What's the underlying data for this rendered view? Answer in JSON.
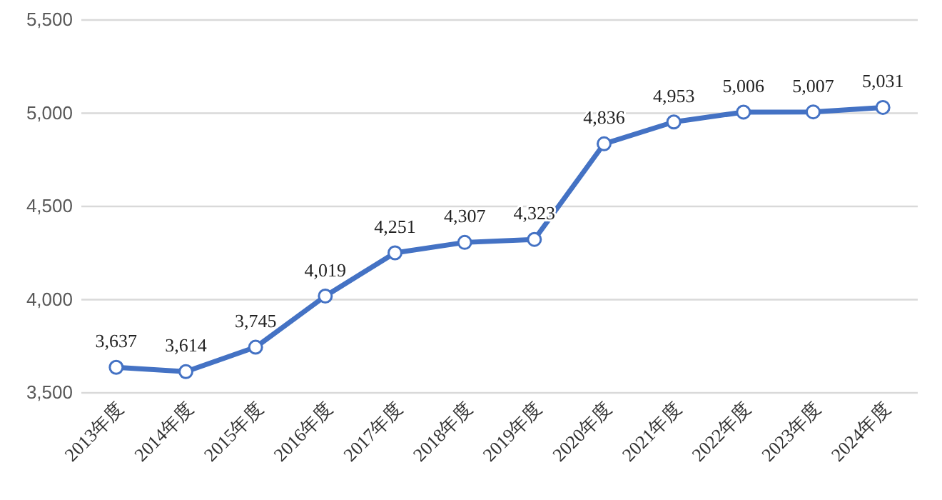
{
  "chart_data": {
    "type": "line",
    "categories": [
      "2013年度",
      "2014年度",
      "2015年度",
      "2016年度",
      "2017年度",
      "2018年度",
      "2019年度",
      "2020年度",
      "2021年度",
      "2022年度",
      "2023年度",
      "2024年度"
    ],
    "values": [
      3637,
      3614,
      3745,
      4019,
      4251,
      4307,
      4323,
      4836,
      4953,
      5006,
      5007,
      5031
    ],
    "color": "#4472c4",
    "ylim": [
      3500,
      5500
    ],
    "yticks": [
      {
        "value": 3500,
        "label": "3,500"
      },
      {
        "value": 4000,
        "label": "4,000"
      },
      {
        "value": 4500,
        "label": "4,500"
      },
      {
        "value": 5000,
        "label": "5,000"
      },
      {
        "value": 5500,
        "label": "5,500"
      }
    ],
    "grid": "y",
    "value_labels": [
      "3,637",
      "3,614",
      "3,745",
      "4,019",
      "4,251",
      "4,307",
      "4,323",
      "4,836",
      "4,953",
      "5,006",
      "5,007",
      "5,031"
    ],
    "marker": "circle",
    "line_style": "solid"
  }
}
